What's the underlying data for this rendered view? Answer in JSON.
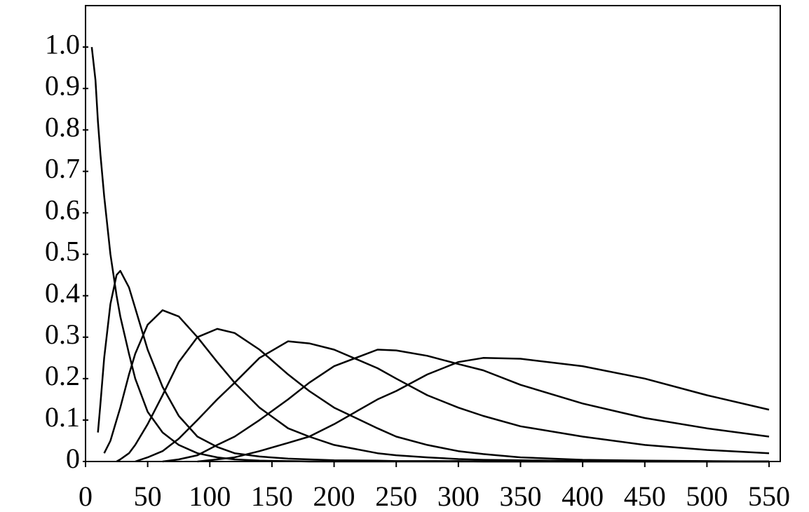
{
  "chart_data": {
    "type": "line",
    "x": [
      5,
      8,
      10,
      12,
      15,
      20,
      25,
      28,
      35,
      40,
      50,
      62,
      75,
      90,
      106,
      120,
      140,
      163,
      180,
      200,
      235,
      250,
      275,
      300,
      320,
      350,
      400,
      450,
      500,
      550
    ],
    "series": [
      {
        "color": "#000000",
        "values": [
          1.0,
          0.92,
          0.82,
          0.74,
          0.64,
          0.5,
          0.4,
          0.35,
          0.26,
          0.2,
          0.12,
          0.07,
          0.04,
          0.02,
          0.01,
          0.005,
          0.002,
          0.001,
          0,
          0,
          0,
          0,
          0,
          0,
          0,
          0,
          0,
          0,
          0,
          0
        ]
      },
      {
        "color": "#000000",
        "values": [
          null,
          null,
          0.07,
          0.14,
          0.25,
          0.38,
          0.45,
          0.46,
          0.42,
          0.37,
          0.27,
          0.18,
          0.11,
          0.06,
          0.035,
          0.02,
          0.012,
          0.007,
          0.005,
          0.003,
          0.002,
          0.001,
          0.001,
          0.001,
          0,
          0,
          0,
          0,
          0,
          0
        ]
      },
      {
        "color": "#000000",
        "values": [
          null,
          null,
          null,
          null,
          0.02,
          0.05,
          0.1,
          0.13,
          0.21,
          0.26,
          0.33,
          0.365,
          0.35,
          0.3,
          0.24,
          0.19,
          0.13,
          0.08,
          0.06,
          0.04,
          0.02,
          0.015,
          0.01,
          0.006,
          0.004,
          0.003,
          0.001,
          0,
          0,
          0
        ]
      },
      {
        "color": "#000000",
        "values": [
          null,
          null,
          null,
          null,
          null,
          null,
          0,
          0.005,
          0.02,
          0.04,
          0.09,
          0.16,
          0.24,
          0.3,
          0.32,
          0.31,
          0.27,
          0.21,
          0.17,
          0.13,
          0.08,
          0.06,
          0.04,
          0.025,
          0.018,
          0.01,
          0.004,
          0.002,
          0.001,
          0
        ]
      },
      {
        "color": "#000000",
        "values": [
          null,
          null,
          null,
          null,
          null,
          null,
          null,
          null,
          null,
          0,
          0.01,
          0.025,
          0.055,
          0.1,
          0.15,
          0.19,
          0.25,
          0.29,
          0.285,
          0.27,
          0.225,
          0.2,
          0.16,
          0.13,
          0.11,
          0.085,
          0.06,
          0.04,
          0.028,
          0.02
        ]
      },
      {
        "color": "#000000",
        "values": [
          null,
          null,
          null,
          null,
          null,
          null,
          null,
          null,
          null,
          null,
          null,
          0,
          0.005,
          0.015,
          0.04,
          0.06,
          0.1,
          0.15,
          0.19,
          0.23,
          0.27,
          0.268,
          0.255,
          0.235,
          0.22,
          0.185,
          0.14,
          0.105,
          0.08,
          0.06
        ]
      },
      {
        "color": "#000000",
        "values": [
          null,
          null,
          null,
          null,
          null,
          null,
          null,
          null,
          null,
          null,
          null,
          null,
          null,
          0,
          0.005,
          0.01,
          0.025,
          0.045,
          0.06,
          0.09,
          0.15,
          0.17,
          0.21,
          0.24,
          0.25,
          0.248,
          0.23,
          0.2,
          0.16,
          0.125
        ]
      }
    ],
    "xlim": [
      0,
      559
    ],
    "ylim": [
      0,
      1.1
    ],
    "xticks": [
      0,
      50,
      100,
      150,
      200,
      250,
      300,
      350,
      400,
      450,
      500,
      550
    ],
    "yticks": [
      0,
      0.1,
      0.2,
      0.3,
      0.4,
      0.5,
      0.6,
      0.7,
      0.8,
      0.9,
      {
        "value": 1,
        "label": "1.0"
      }
    ]
  }
}
